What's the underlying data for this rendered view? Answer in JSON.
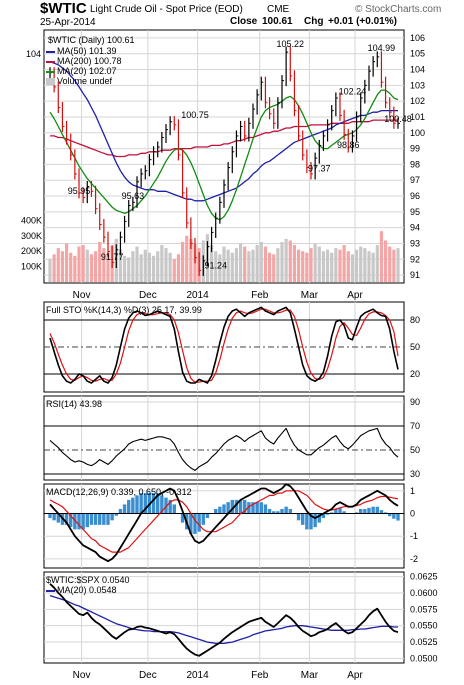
{
  "header": {
    "symbol": "$WTIC",
    "name": "Light Crude Oil - Spot Price (EOD)",
    "exchange": "CME",
    "date": "25-Apr-2014",
    "close_label": "Close",
    "close_value": "100.61",
    "chg_label": "Chg",
    "chg_value": "+0.01 (+0.01%)",
    "watermark": "© StockCharts.com"
  },
  "colors": {
    "price": "#000000",
    "ma50": "#1f1fa8",
    "ma200": "#c0103c",
    "ma20": "#128c12",
    "volume_up": "#c8c8c8",
    "volume_down": "#f4a6a6",
    "sto_k": "#000000",
    "sto_d": "#e01010",
    "macd_hist": "#3a8ed0",
    "grid": "#d6d6d6"
  },
  "chart_data": [
    {
      "type": "line",
      "panel": "price",
      "legend": [
        {
          "key": "price",
          "text": "$WTIC (Daily) 100.61"
        },
        {
          "key": "ma50",
          "text": "MA(50) 101.39"
        },
        {
          "key": "ma200",
          "text": "MA(200) 100.78"
        },
        {
          "key": "ma20",
          "text": "MA(20) 102.07"
        },
        {
          "key": "vol",
          "text": "Volume undef"
        }
      ],
      "ylim": [
        90.5,
        106.5
      ],
      "y_ticks": [
        91,
        92,
        93,
        94,
        95,
        96,
        97,
        98,
        99,
        100,
        101,
        102,
        103,
        104,
        105,
        106
      ],
      "volume_ticks": [
        "400K",
        "300K",
        "200K",
        "100K"
      ],
      "x_labels": [
        "Nov",
        "Dec",
        "2014",
        "Feb",
        "Mar",
        "Apr"
      ],
      "annotations": [
        {
          "text": "104",
          "x": 0,
          "y": 104.6
        },
        {
          "text": "100.75",
          "x": 35,
          "y": 100.75
        },
        {
          "text": "95.95",
          "x": 7,
          "y": 95.95
        },
        {
          "text": "95.63",
          "x": 20,
          "y": 95.63
        },
        {
          "text": "91.77",
          "x": 15,
          "y": 91.77
        },
        {
          "text": "91.24",
          "x": 40,
          "y": 91.24
        },
        {
          "text": "105.22",
          "x": 58,
          "y": 105.22
        },
        {
          "text": "102.24",
          "x": 73,
          "y": 102.24
        },
        {
          "text": "104.99",
          "x": 80,
          "y": 104.99
        },
        {
          "text": "98.86",
          "x": 72,
          "y": 98.86
        },
        {
          "text": "97.37",
          "x": 65,
          "y": 97.37
        },
        {
          "text": "100.48",
          "x": 84,
          "y": 100.48
        }
      ],
      "price": [
        103.8,
        102.9,
        101.6,
        100.4,
        99.6,
        98.6,
        97.4,
        96.2,
        95.9,
        96.6,
        96.3,
        95.2,
        94.2,
        93.4,
        92.5,
        91.8,
        92.6,
        93.4,
        94.4,
        95.4,
        95.6,
        96.9,
        97.4,
        97.6,
        98.3,
        98.8,
        99.1,
        99.7,
        100.2,
        100.7,
        100.5,
        98.6,
        96.2,
        94.3,
        93.0,
        92.1,
        91.3,
        91.9,
        92.8,
        93.7,
        94.6,
        95.6,
        96.7,
        97.8,
        98.8,
        99.8,
        100.4,
        99.8,
        100.6,
        101.5,
        102.4,
        103.2,
        101.9,
        101.2,
        100.6,
        101.9,
        103.3,
        105.1,
        103.6,
        101.4,
        99.8,
        98.6,
        97.8,
        97.4,
        98.4,
        99.2,
        99.8,
        100.5,
        101.4,
        102.2,
        101.1,
        99.9,
        99.1,
        99.8,
        101.0,
        102.2,
        103.0,
        103.9,
        104.5,
        104.8,
        103.2,
        101.9,
        101.3,
        100.6,
        100.6
      ],
      "ma50": [
        104.5,
        104.4,
        104.3,
        104.1,
        103.9,
        103.6,
        103.3,
        102.9,
        102.5,
        102.1,
        101.6,
        101.1,
        100.5,
        99.9,
        99.3,
        98.7,
        98.1,
        97.6,
        97.2,
        96.9,
        96.7,
        96.6,
        96.5,
        96.4,
        96.4,
        96.4,
        96.3,
        96.3,
        96.3,
        96.2,
        96.1,
        96.0,
        95.9,
        95.8,
        95.8,
        95.7,
        95.7,
        95.7,
        95.8,
        95.9,
        96.0,
        96.1,
        96.2,
        96.3,
        96.4,
        96.5,
        96.7,
        96.9,
        97.1,
        97.4,
        97.6,
        97.9,
        98.1,
        98.2,
        98.4,
        98.6,
        98.8,
        99.0,
        99.2,
        99.4,
        99.5,
        99.6,
        99.7,
        99.8,
        99.9,
        100.0,
        100.1,
        100.2,
        100.3,
        100.5,
        100.6,
        100.7,
        100.8,
        100.9,
        101.0,
        101.1,
        101.1,
        101.2,
        101.3,
        101.3,
        101.4,
        101.4,
        101.4,
        101.4,
        101.4
      ],
      "ma200": [
        99.8,
        99.8,
        99.7,
        99.7,
        99.6,
        99.5,
        99.4,
        99.3,
        99.2,
        99.1,
        99.0,
        98.9,
        98.8,
        98.7,
        98.6,
        98.6,
        98.5,
        98.5,
        98.5,
        98.6,
        98.6,
        98.6,
        98.7,
        98.7,
        98.8,
        98.8,
        98.8,
        98.9,
        98.9,
        98.9,
        99.0,
        99.0,
        99.0,
        99.0,
        99.0,
        99.1,
        99.1,
        99.1,
        99.1,
        99.2,
        99.2,
        99.2,
        99.3,
        99.3,
        99.4,
        99.5,
        99.5,
        99.6,
        99.7,
        99.7,
        99.8,
        99.9,
        100.0,
        100.0,
        100.1,
        100.1,
        100.2,
        100.3,
        100.3,
        100.4,
        100.4,
        100.4,
        100.4,
        100.5,
        100.5,
        100.5,
        100.5,
        100.5,
        100.6,
        100.6,
        100.6,
        100.6,
        100.6,
        100.7,
        100.7,
        100.7,
        100.7,
        100.7,
        100.8,
        100.8,
        100.8,
        100.8,
        100.8,
        100.8,
        100.8
      ],
      "ma20": [
        101.3,
        100.9,
        100.4,
        99.9,
        99.4,
        98.9,
        98.4,
        97.9,
        97.5,
        97.1,
        96.8,
        96.5,
        96.2,
        95.9,
        95.6,
        95.3,
        95.1,
        95.0,
        94.9,
        95.0,
        95.2,
        95.4,
        95.7,
        96.0,
        96.4,
        96.8,
        97.2,
        97.7,
        98.2,
        98.6,
        98.9,
        99.0,
        98.9,
        98.6,
        98.1,
        97.5,
        96.8,
        96.1,
        95.4,
        94.9,
        94.6,
        94.5,
        94.7,
        95.1,
        95.7,
        96.4,
        97.2,
        98.0,
        98.8,
        99.6,
        100.3,
        101.0,
        101.4,
        101.6,
        101.7,
        101.8,
        102.0,
        102.2,
        102.3,
        102.1,
        101.7,
        101.2,
        100.6,
        100.0,
        99.5,
        99.2,
        99.0,
        99.0,
        99.2,
        99.4,
        99.6,
        99.8,
        99.9,
        100.0,
        100.2,
        100.5,
        100.9,
        101.4,
        101.9,
        102.4,
        102.7,
        102.7,
        102.5,
        102.2,
        102.1
      ],
      "volume": [
        150,
        180,
        220,
        200,
        250,
        190,
        170,
        230,
        240,
        210,
        180,
        200,
        260,
        220,
        190,
        240,
        280,
        210,
        170,
        160,
        200,
        230,
        180,
        210,
        190,
        170,
        200,
        240,
        220,
        190,
        150,
        180,
        260,
        300,
        280,
        250,
        220,
        270,
        310,
        240,
        200,
        180,
        230,
        210,
        190,
        220,
        250,
        230,
        200,
        210,
        240,
        260,
        230,
        190,
        180,
        220,
        260,
        280,
        270,
        240,
        210,
        200,
        190,
        220,
        250,
        230,
        200,
        210,
        190,
        220,
        210,
        240,
        200,
        180,
        210,
        230,
        220,
        200,
        190,
        240,
        330,
        270,
        230,
        210,
        220
      ]
    },
    {
      "type": "line",
      "panel": "stochastic",
      "legend_text": "Full STO %K(14,3) %D(3) 25.17, 39.99",
      "ylim": [
        0,
        100
      ],
      "y_ticks": [
        20,
        50,
        80
      ],
      "k": [
        60,
        45,
        30,
        18,
        12,
        10,
        14,
        20,
        18,
        12,
        10,
        14,
        18,
        12,
        10,
        16,
        30,
        50,
        70,
        82,
        88,
        90,
        88,
        85,
        86,
        88,
        90,
        88,
        86,
        84,
        70,
        45,
        22,
        12,
        10,
        10,
        14,
        12,
        10,
        18,
        35,
        55,
        72,
        84,
        90,
        92,
        88,
        84,
        88,
        90,
        92,
        94,
        90,
        88,
        86,
        90,
        92,
        94,
        88,
        70,
        50,
        30,
        18,
        14,
        12,
        15,
        22,
        40,
        62,
        78,
        80,
        74,
        60,
        58,
        72,
        84,
        88,
        90,
        92,
        88,
        85,
        84,
        70,
        45,
        25
      ],
      "d": [
        65,
        55,
        42,
        30,
        20,
        14,
        13,
        16,
        18,
        16,
        13,
        12,
        14,
        15,
        13,
        13,
        20,
        32,
        50,
        68,
        80,
        86,
        88,
        87,
        86,
        86,
        87,
        88,
        88,
        86,
        80,
        66,
        46,
        27,
        15,
        11,
        11,
        12,
        12,
        13,
        21,
        36,
        54,
        70,
        82,
        88,
        90,
        88,
        87,
        88,
        90,
        92,
        92,
        90,
        88,
        88,
        89,
        91,
        91,
        84,
        69,
        50,
        33,
        21,
        15,
        14,
        16,
        26,
        41,
        60,
        73,
        77,
        71,
        64,
        63,
        71,
        81,
        87,
        89,
        89,
        88,
        85,
        80,
        67,
        40
      ]
    },
    {
      "type": "line",
      "panel": "rsi",
      "legend_text": "RSI(14) 43.98",
      "ylim": [
        25,
        95
      ],
      "y_ticks": [
        30,
        50,
        70,
        90
      ],
      "values": [
        58,
        55,
        52,
        48,
        45,
        42,
        40,
        41,
        40,
        38,
        37,
        39,
        42,
        40,
        38,
        41,
        45,
        48,
        51,
        55,
        57,
        58,
        59,
        58,
        59,
        60,
        61,
        61,
        60,
        59,
        55,
        48,
        42,
        38,
        35,
        33,
        36,
        38,
        40,
        44,
        47,
        51,
        55,
        58,
        60,
        62,
        60,
        57,
        60,
        62,
        64,
        66,
        60,
        57,
        55,
        60,
        64,
        68,
        60,
        54,
        50,
        48,
        46,
        46,
        49,
        52,
        54,
        57,
        60,
        62,
        57,
        53,
        51,
        54,
        58,
        62,
        64,
        66,
        67,
        68,
        60,
        55,
        52,
        47,
        44
      ]
    },
    {
      "type": "line",
      "panel": "macd",
      "legend_text": "MACD(12,26,9) 0.339, 0.650, -0.312",
      "ylim": [
        -2.4,
        1.3
      ],
      "y_ticks": [
        1,
        0,
        -1,
        -2
      ],
      "macd": [
        0.4,
        0.2,
        0.0,
        -0.2,
        -0.4,
        -0.7,
        -1.0,
        -1.2,
        -1.4,
        -1.5,
        -1.6,
        -1.7,
        -1.9,
        -2.0,
        -2.1,
        -2.0,
        -1.8,
        -1.5,
        -1.2,
        -0.9,
        -0.6,
        -0.3,
        0.0,
        0.2,
        0.4,
        0.6,
        0.8,
        0.9,
        1.0,
        1.1,
        1.0,
        0.6,
        0.1,
        -0.4,
        -0.9,
        -1.2,
        -1.3,
        -1.2,
        -1.0,
        -0.8,
        -0.6,
        -0.4,
        -0.2,
        0.0,
        0.2,
        0.4,
        0.6,
        0.7,
        0.8,
        0.9,
        1.0,
        1.1,
        1.1,
        1.0,
        0.9,
        1.0,
        1.1,
        1.3,
        1.2,
        1.0,
        0.7,
        0.4,
        0.1,
        -0.1,
        -0.2,
        -0.1,
        0.0,
        0.1,
        0.2,
        0.4,
        0.5,
        0.4,
        0.3,
        0.3,
        0.4,
        0.6,
        0.7,
        0.8,
        0.9,
        1.0,
        0.9,
        0.8,
        0.6,
        0.45,
        0.34
      ],
      "signal": [
        0.6,
        0.5,
        0.4,
        0.3,
        0.1,
        -0.1,
        -0.3,
        -0.5,
        -0.7,
        -0.9,
        -1.1,
        -1.2,
        -1.4,
        -1.5,
        -1.6,
        -1.7,
        -1.7,
        -1.7,
        -1.6,
        -1.5,
        -1.3,
        -1.1,
        -0.9,
        -0.7,
        -0.5,
        -0.3,
        -0.1,
        0.1,
        0.3,
        0.5,
        0.6,
        0.6,
        0.5,
        0.3,
        0.0,
        -0.3,
        -0.5,
        -0.7,
        -0.8,
        -0.8,
        -0.8,
        -0.7,
        -0.6,
        -0.5,
        -0.4,
        -0.2,
        0.0,
        0.1,
        0.3,
        0.4,
        0.5,
        0.6,
        0.7,
        0.8,
        0.8,
        0.9,
        0.9,
        1.0,
        1.0,
        1.0,
        1.0,
        0.9,
        0.8,
        0.6,
        0.4,
        0.3,
        0.2,
        0.15,
        0.15,
        0.2,
        0.25,
        0.3,
        0.3,
        0.3,
        0.35,
        0.4,
        0.5,
        0.55,
        0.6,
        0.7,
        0.75,
        0.75,
        0.72,
        0.68,
        0.65
      ]
    },
    {
      "type": "line",
      "panel": "ratio",
      "legend": [
        {
          "key": "ratio",
          "text": "$WTIC:$SPX 0.0540"
        },
        {
          "key": "ma",
          "text": "MA(20) 0.0548"
        }
      ],
      "ylim": [
        0.0493,
        0.0632
      ],
      "y_ticks": [
        0.05,
        0.0525,
        0.055,
        0.0575,
        0.06,
        0.0625
      ],
      "y_tick_labels": [
        "0.0500",
        "0.0525",
        "0.0550",
        "0.0575",
        "0.0600",
        "0.0625"
      ],
      "ratio": [
        0.0614,
        0.0608,
        0.06,
        0.0594,
        0.0586,
        0.058,
        0.0574,
        0.0568,
        0.0566,
        0.057,
        0.0562,
        0.0556,
        0.0552,
        0.0546,
        0.054,
        0.0534,
        0.053,
        0.0535,
        0.054,
        0.0544,
        0.0545,
        0.0548,
        0.0549,
        0.0547,
        0.0546,
        0.0544,
        0.0542,
        0.054,
        0.0538,
        0.054,
        0.0537,
        0.053,
        0.0522,
        0.0515,
        0.051,
        0.0506,
        0.0504,
        0.0508,
        0.0512,
        0.0516,
        0.052,
        0.0524,
        0.053,
        0.0535,
        0.054,
        0.0544,
        0.0548,
        0.0552,
        0.0556,
        0.0558,
        0.056,
        0.0562,
        0.0556,
        0.0552,
        0.0548,
        0.0554,
        0.056,
        0.0566,
        0.0562,
        0.0556,
        0.0548,
        0.0542,
        0.0538,
        0.0534,
        0.0536,
        0.054,
        0.0542,
        0.0545,
        0.055,
        0.0554,
        0.0548,
        0.0542,
        0.0538,
        0.054,
        0.0546,
        0.0552,
        0.0558,
        0.0566,
        0.0572,
        0.0576,
        0.0566,
        0.0556,
        0.0548,
        0.0542,
        0.054
      ],
      "ma": [
        0.0596,
        0.0594,
        0.0592,
        0.059,
        0.0588,
        0.0585,
        0.0582,
        0.058,
        0.0577,
        0.0574,
        0.0571,
        0.0568,
        0.0565,
        0.0562,
        0.0559,
        0.0556,
        0.0553,
        0.0551,
        0.0549,
        0.0547,
        0.0545,
        0.0544,
        0.0543,
        0.0542,
        0.0542,
        0.0541,
        0.0541,
        0.0541,
        0.0541,
        0.0541,
        0.054,
        0.0539,
        0.0537,
        0.0535,
        0.0533,
        0.0531,
        0.0529,
        0.0527,
        0.0525,
        0.0524,
        0.0523,
        0.0523,
        0.0523,
        0.0524,
        0.0525,
        0.0527,
        0.0529,
        0.0531,
        0.0533,
        0.0536,
        0.0538,
        0.054,
        0.0542,
        0.0543,
        0.0544,
        0.0545,
        0.0546,
        0.0548,
        0.0549,
        0.055,
        0.055,
        0.055,
        0.0549,
        0.0548,
        0.0547,
        0.0546,
        0.0545,
        0.0544,
        0.0543,
        0.0543,
        0.0543,
        0.0543,
        0.0543,
        0.0544,
        0.0544,
        0.0545,
        0.0545,
        0.0546,
        0.0547,
        0.0548,
        0.0549,
        0.0549,
        0.0549,
        0.0548,
        0.0548
      ]
    }
  ]
}
